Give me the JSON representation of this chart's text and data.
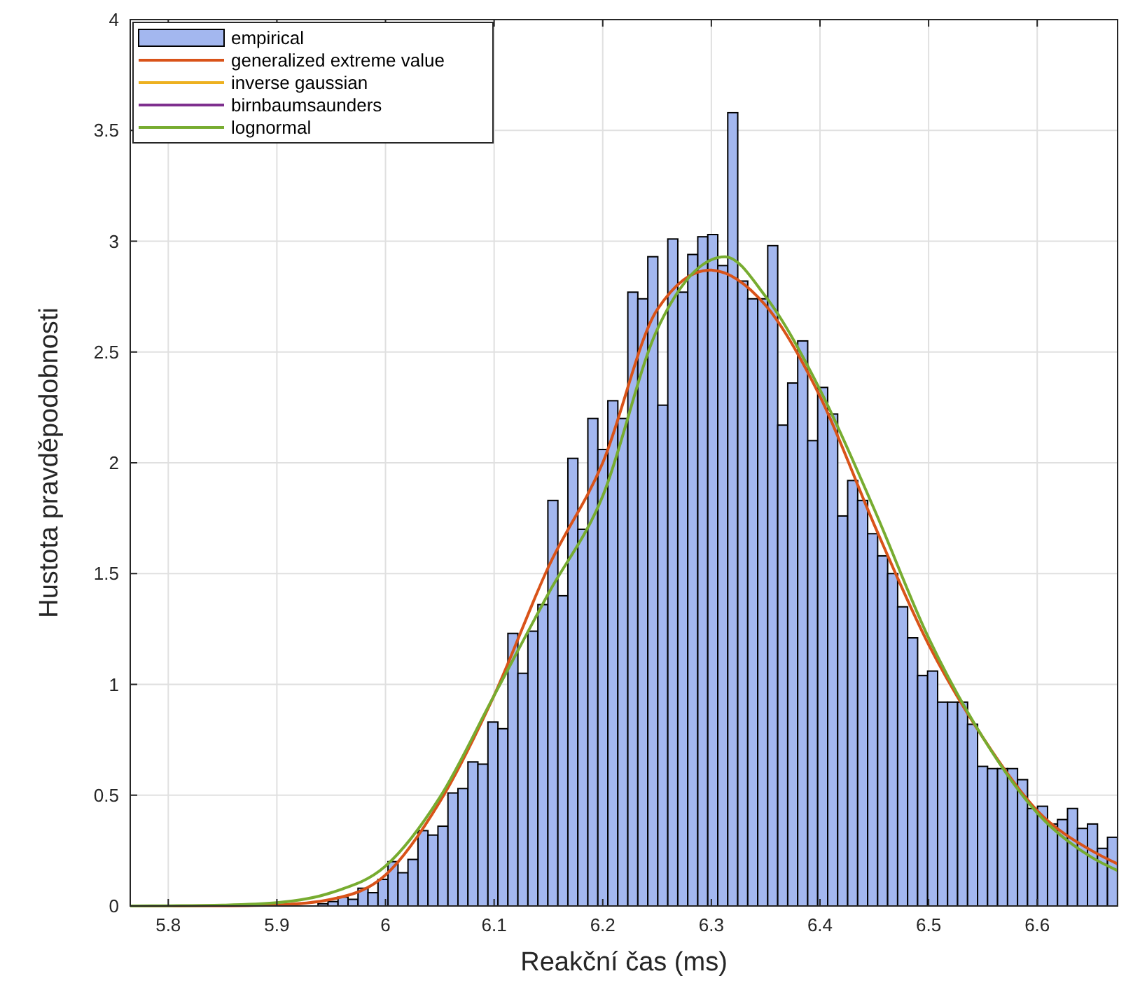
{
  "chart_data": {
    "type": "histogram",
    "xlabel": "Reakční čas (ms)",
    "ylabel": "Hustota pravděpodobnosti",
    "xlim": [
      5.765,
      6.674
    ],
    "ylim": [
      0,
      4
    ],
    "xticks": [
      5.8,
      5.9,
      6,
      6.1,
      6.2,
      6.3,
      6.4,
      6.5,
      6.6
    ],
    "yticks": [
      0,
      0.5,
      1,
      1.5,
      2,
      2.5,
      3,
      3.5,
      4
    ],
    "grid": true,
    "legend": "top left",
    "bins": [
      5.9379,
      5.9471,
      5.9563,
      5.9655,
      5.9747,
      5.9839,
      5.9931,
      6.0023,
      6.0115,
      6.0207,
      6.0299,
      6.0391,
      6.0483,
      6.0575,
      6.0667,
      6.0759,
      6.0851,
      6.0943,
      6.1035,
      6.1127,
      6.1219,
      6.1311,
      6.1403,
      6.1495,
      6.1587,
      6.1679,
      6.1771,
      6.1863,
      6.1955,
      6.2047,
      6.2139,
      6.2231,
      6.2323,
      6.2415,
      6.2507,
      6.2599,
      6.2691,
      6.2783,
      6.2875,
      6.2967,
      6.3059,
      6.3151,
      6.3243,
      6.3335,
      6.3427,
      6.3519,
      6.3611,
      6.3703,
      6.3795,
      6.3887,
      6.3979,
      6.4071,
      6.4163,
      6.4255,
      6.4347,
      6.4439,
      6.4531,
      6.4623,
      6.4715,
      6.4807,
      6.4899,
      6.4991,
      6.5083,
      6.5175,
      6.5267,
      6.5359,
      6.5451,
      6.5543,
      6.5635,
      6.5727,
      6.5819,
      6.5911,
      6.6003,
      6.6095,
      6.6187,
      6.6279,
      6.6371,
      6.6463,
      6.6555,
      6.6647,
      6.6739
    ],
    "series": [
      {
        "name": "empirical",
        "type": "histogram",
        "color": "#a3b7ef",
        "values": [
          0.01,
          0.02,
          0.04,
          0.03,
          0.08,
          0.06,
          0.12,
          0.2,
          0.15,
          0.21,
          0.34,
          0.32,
          0.36,
          0.51,
          0.53,
          0.65,
          0.64,
          0.83,
          0.8,
          1.23,
          1.05,
          1.24,
          1.36,
          1.83,
          1.4,
          2.02,
          1.7,
          2.2,
          2.06,
          2.28,
          2.2,
          2.77,
          2.74,
          2.93,
          2.26,
          3.01,
          2.77,
          2.94,
          3.02,
          3.03,
          2.89,
          3.58,
          2.82,
          2.74,
          2.74,
          2.98,
          2.17,
          2.36,
          2.55,
          2.1,
          2.34,
          2.22,
          1.76,
          1.92,
          1.83,
          1.68,
          1.58,
          1.5,
          1.35,
          1.21,
          1.04,
          1.06,
          0.92,
          0.92,
          0.92,
          0.82,
          0.63,
          0.62,
          0.62,
          0.62,
          0.57,
          0.44,
          0.45,
          0.37,
          0.39,
          0.44,
          0.35,
          0.37,
          0.26,
          0.31
        ]
      },
      {
        "name": "generalized extreme value",
        "type": "line",
        "color": "#d95319",
        "x": [
          5.765,
          5.8,
          5.85,
          5.9,
          5.95,
          6,
          6.05,
          6.1,
          6.15,
          6.2,
          6.25,
          6.2983,
          6.35,
          6.4,
          6.45,
          6.5,
          6.55,
          6.6,
          6.65,
          6.674
        ],
        "values": [
          0,
          0,
          0.001,
          0.005,
          0.03,
          0.14,
          0.47,
          0.95,
          1.53,
          2.0,
          2.69,
          2.87,
          2.71,
          2.3,
          1.72,
          1.18,
          0.76,
          0.43,
          0.25,
          0.19
        ]
      },
      {
        "name": "inverse gaussian",
        "type": "line",
        "color": "#edb120"
      },
      {
        "name": "birnbaumsaunders",
        "type": "line",
        "color": "#7e2f8e"
      },
      {
        "name": "lognormal",
        "type": "line",
        "color": "#77ac30",
        "x": [
          5.765,
          5.8,
          5.85,
          5.9,
          5.95,
          6,
          6.05,
          6.1,
          6.15,
          6.2,
          6.25,
          6.3127,
          6.35,
          6.4,
          6.45,
          6.5,
          6.55,
          6.6,
          6.65,
          6.674
        ],
        "values": [
          0,
          0.001,
          0.004,
          0.015,
          0.06,
          0.18,
          0.49,
          0.95,
          1.41,
          1.85,
          2.6,
          2.93,
          2.75,
          2.33,
          1.79,
          1.21,
          0.76,
          0.42,
          0.22,
          0.16
        ]
      }
    ]
  }
}
